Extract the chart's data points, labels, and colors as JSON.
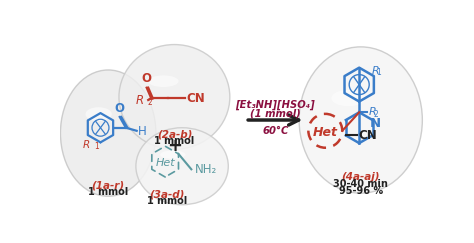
{
  "bg": "#ffffff",
  "blue": "#3a7dc9",
  "red": "#c0392b",
  "teal": "#5b9aa0",
  "dark_maroon": "#8B1040",
  "gray_dark": "#555555",
  "gray_med": "#888888",
  "dark": "#222222",
  "figsize": [
    4.74,
    2.43
  ],
  "dpi": 100,
  "lab_1ar": "(1a-r)",
  "lab_2ab": "(2a-b)",
  "lab_3ad": "(3a-d)",
  "lab_4aaj": "(4a-aj)",
  "mmol": "1 mmol",
  "time": "30-40 min",
  "yield_": "95-96 %",
  "cat1": "[Et₃NH][HSO₄]",
  "cat2": "(1 mmol)",
  "cat3": "60°C"
}
